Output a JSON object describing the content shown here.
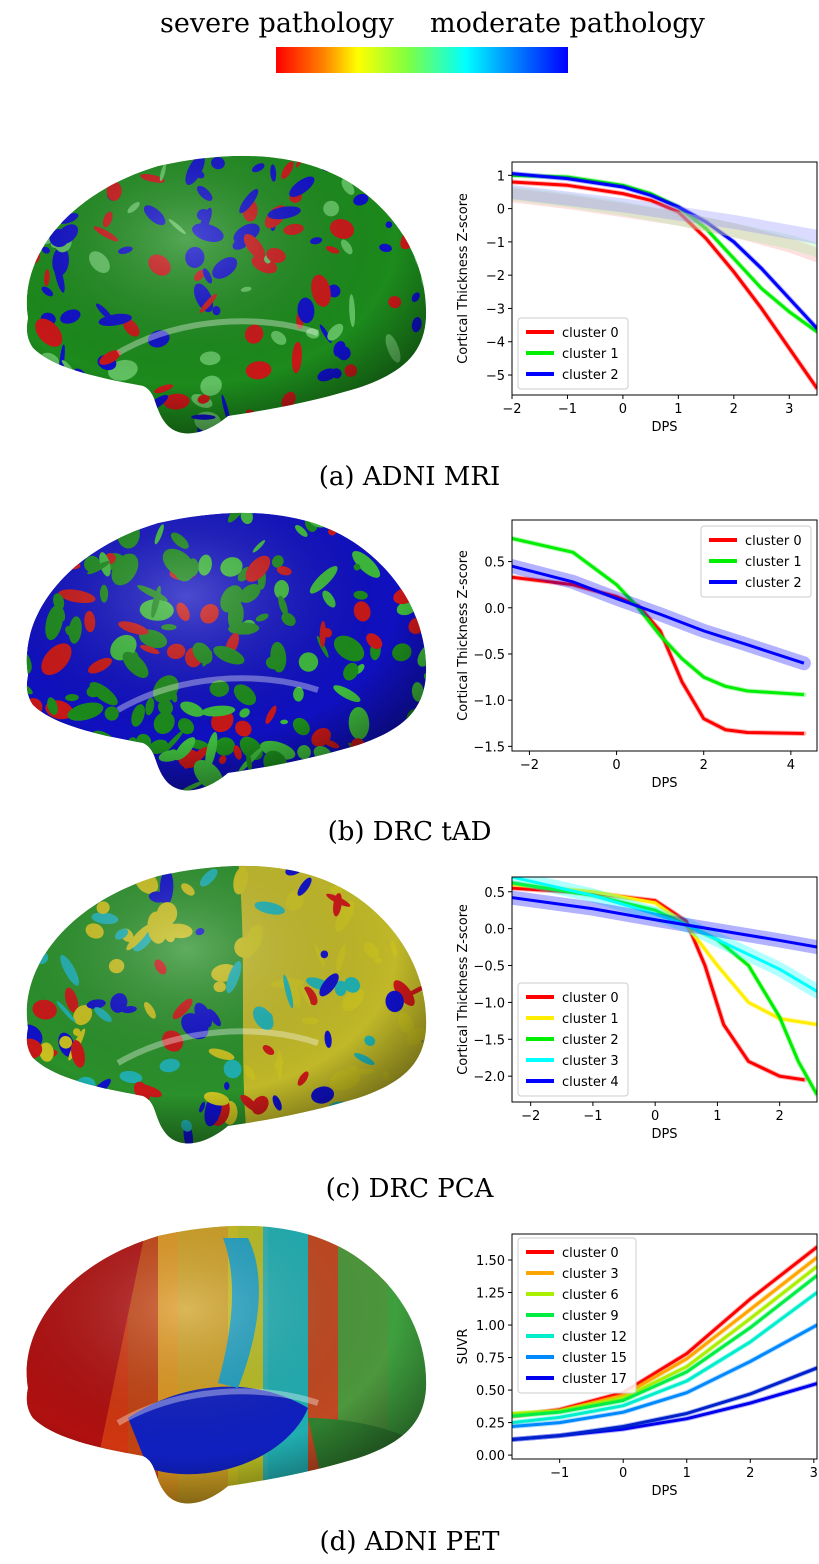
{
  "colorbar": {
    "left_label": "severe pathology",
    "right_label": "moderate pathology"
  },
  "panels": [
    {
      "caption": "(a) ADNI MRI",
      "brain_scheme": "rgb-spots"
    },
    {
      "caption": "(b) DRC tAD",
      "brain_scheme": "rgb-spots-dense"
    },
    {
      "caption": "(c) DRC PCA",
      "brain_scheme": "rgbyc"
    },
    {
      "caption": "(d) ADNI PET",
      "brain_scheme": "smooth-jet"
    }
  ],
  "chart_data": [
    {
      "type": "line",
      "xlabel": "DPS",
      "ylabel": "Cortical Thickness Z-score",
      "xlim": [
        -2,
        3.5
      ],
      "ylim": [
        -5.6,
        1.4
      ],
      "xticks": [
        -2,
        -1,
        0,
        1,
        2,
        3
      ],
      "xtick_labels": [
        "−2",
        "−1",
        "0",
        "1",
        "2",
        "3"
      ],
      "yticks": [
        1,
        0,
        -1,
        -2,
        -3,
        -4,
        -5
      ],
      "ytick_labels": [
        "1",
        "0",
        "−1",
        "−2",
        "−3",
        "−4",
        "−5"
      ],
      "legend": "lower-left",
      "series": [
        {
          "name": "cluster 0",
          "color": "#ff0000",
          "x": [
            -2,
            -1,
            0,
            0.5,
            1,
            1.5,
            2,
            2.5,
            3,
            3.5
          ],
          "y": [
            0.8,
            0.7,
            0.45,
            0.25,
            -0.1,
            -0.9,
            -1.9,
            -3.0,
            -4.2,
            -5.4
          ]
        },
        {
          "name": "cluster 1",
          "color": "#00ee00",
          "x": [
            -2,
            -1,
            0,
            0.5,
            1,
            1.5,
            2,
            2.5,
            3,
            3.5
          ],
          "y": [
            1.0,
            0.95,
            0.7,
            0.45,
            0.05,
            -0.6,
            -1.5,
            -2.4,
            -3.1,
            -3.7
          ]
        },
        {
          "name": "cluster 2",
          "color": "#0000ff",
          "x": [
            -2,
            -1,
            0,
            0.5,
            1,
            1.5,
            2,
            2.5,
            3,
            3.5
          ],
          "y": [
            1.05,
            0.9,
            0.65,
            0.4,
            0.05,
            -0.4,
            -1.0,
            -1.8,
            -2.7,
            -3.6
          ]
        },
        {
          "name": "",
          "color": "#ff9999",
          "x": [
            -2,
            -1,
            0,
            1,
            2,
            3,
            3.5
          ],
          "y": [
            0.4,
            0.2,
            -0.05,
            -0.3,
            -0.65,
            -1.1,
            -1.4
          ],
          "band": true
        },
        {
          "name": "",
          "color": "#99ee99",
          "x": [
            -2,
            -1,
            0,
            1,
            2,
            3,
            3.5
          ],
          "y": [
            0.45,
            0.25,
            0.0,
            -0.3,
            -0.65,
            -1.0,
            -1.25
          ],
          "band": true
        },
        {
          "name": "",
          "color": "#8888ff",
          "x": [
            -2,
            -1,
            0,
            1,
            2,
            3,
            3.5
          ],
          "y": [
            0.5,
            0.3,
            0.1,
            -0.15,
            -0.4,
            -0.7,
            -0.85
          ],
          "band": true
        }
      ]
    },
    {
      "type": "line",
      "xlabel": "DPS",
      "ylabel": "Cortical Thickness Z-score",
      "xlim": [
        -2.4,
        4.6
      ],
      "ylim": [
        -1.55,
        0.95
      ],
      "xticks": [
        -2,
        0,
        2,
        4
      ],
      "xtick_labels": [
        "−2",
        "0",
        "2",
        "4"
      ],
      "yticks": [
        0.5,
        0,
        -0.5,
        -1,
        -1.5
      ],
      "ytick_labels": [
        "0.5",
        "0.0",
        "−0.5",
        "−1.0",
        "−1.5"
      ],
      "legend": "upper-right",
      "series": [
        {
          "name": "cluster 0",
          "color": "#ff0000",
          "x": [
            -2.4,
            -1,
            0,
            0.5,
            1,
            1.5,
            2,
            2.5,
            3,
            4.3
          ],
          "y": [
            0.33,
            0.25,
            0.12,
            0.02,
            -0.25,
            -0.8,
            -1.2,
            -1.32,
            -1.35,
            -1.36
          ]
        },
        {
          "name": "cluster 1",
          "color": "#00ee00",
          "x": [
            -2.4,
            -1,
            0,
            0.5,
            1,
            1.5,
            2,
            2.5,
            3,
            4.3
          ],
          "y": [
            0.75,
            0.6,
            0.25,
            0.0,
            -0.3,
            -0.55,
            -0.75,
            -0.85,
            -0.9,
            -0.94
          ]
        },
        {
          "name": "cluster 2",
          "color": "#0000ff",
          "x": [
            -2.4,
            -1,
            0,
            1,
            2,
            3,
            4.3
          ],
          "y": [
            0.45,
            0.28,
            0.1,
            -0.07,
            -0.25,
            -0.4,
            -0.6
          ],
          "band": true
        }
      ]
    },
    {
      "type": "line",
      "xlabel": "DPS",
      "ylabel": "Cortical Thickness Z-score",
      "xlim": [
        -2.3,
        2.6
      ],
      "ylim": [
        -2.35,
        0.7
      ],
      "xticks": [
        -2,
        -1,
        0,
        1,
        2
      ],
      "xtick_labels": [
        "−2",
        "−1",
        "0",
        "1",
        "2"
      ],
      "yticks": [
        0.5,
        0,
        -0.5,
        -1,
        -1.5,
        -2
      ],
      "ytick_labels": [
        "0.5",
        "0.0",
        "−0.5",
        "−1.0",
        "−1.5",
        "−2.0"
      ],
      "legend": "lower-left",
      "series": [
        {
          "name": "cluster 0",
          "color": "#ff0000",
          "x": [
            -2.3,
            -1,
            0,
            0.5,
            0.8,
            1.1,
            1.5,
            2,
            2.4
          ],
          "y": [
            0.55,
            0.48,
            0.38,
            0.1,
            -0.5,
            -1.3,
            -1.8,
            -2.0,
            -2.05
          ]
        },
        {
          "name": "cluster 1",
          "color": "#ffee00",
          "x": [
            -2.3,
            -1,
            0,
            0.5,
            1,
            1.5,
            2,
            2.6
          ],
          "y": [
            0.6,
            0.5,
            0.35,
            0.05,
            -0.5,
            -1.0,
            -1.22,
            -1.3
          ]
        },
        {
          "name": "cluster 2",
          "color": "#00ee00",
          "x": [
            -2.3,
            -1,
            0,
            0.5,
            1,
            1.5,
            2,
            2.3,
            2.6
          ],
          "y": [
            0.62,
            0.45,
            0.25,
            0.05,
            -0.15,
            -0.5,
            -1.2,
            -1.8,
            -2.25
          ]
        },
        {
          "name": "cluster 3",
          "color": "#00ffff",
          "x": [
            -2.3,
            -1,
            0,
            0.5,
            1,
            1.5,
            2,
            2.6
          ],
          "y": [
            0.7,
            0.45,
            0.2,
            0.05,
            -0.15,
            -0.35,
            -0.55,
            -0.85
          ],
          "band": true
        },
        {
          "name": "cluster 4",
          "color": "#0000ff",
          "x": [
            -2.3,
            -1,
            0,
            1,
            2,
            2.6
          ],
          "y": [
            0.42,
            0.27,
            0.12,
            -0.02,
            -0.16,
            -0.25
          ],
          "band": true
        }
      ]
    },
    {
      "type": "line",
      "xlabel": "DPS",
      "ylabel": "SUVR",
      "xlim": [
        -1.75,
        3.05
      ],
      "ylim": [
        -0.03,
        1.7
      ],
      "xticks": [
        -1,
        0,
        1,
        2,
        3
      ],
      "xtick_labels": [
        "−1",
        "0",
        "1",
        "2",
        "3"
      ],
      "yticks": [
        0,
        0.25,
        0.5,
        0.75,
        1,
        1.25,
        1.5
      ],
      "ytick_labels": [
        "0.00",
        "0.25",
        "0.50",
        "0.75",
        "1.00",
        "1.25",
        "1.50"
      ],
      "legend": "upper-left",
      "series": [
        {
          "name": "cluster 0",
          "color": "#ff0000",
          "x": [
            -1.75,
            -1,
            0,
            1,
            2,
            3.05
          ],
          "y": [
            0.3,
            0.35,
            0.48,
            0.78,
            1.2,
            1.6
          ]
        },
        {
          "name": "cluster 3",
          "color": "#ffa500",
          "x": [
            -1.75,
            -1,
            0,
            1,
            2,
            3.05
          ],
          "y": [
            0.3,
            0.34,
            0.46,
            0.74,
            1.12,
            1.52
          ]
        },
        {
          "name": "cluster 6",
          "color": "#aaee00",
          "x": [
            -1.75,
            -1,
            0,
            1,
            2,
            3.05
          ],
          "y": [
            0.32,
            0.34,
            0.44,
            0.68,
            1.05,
            1.45
          ]
        },
        {
          "name": "cluster 9",
          "color": "#00ee44",
          "x": [
            -1.75,
            -1,
            0,
            1,
            2,
            3.05
          ],
          "y": [
            0.3,
            0.33,
            0.42,
            0.64,
            0.98,
            1.38
          ]
        },
        {
          "name": "cluster 12",
          "color": "#00eecc",
          "x": [
            -1.75,
            -1,
            0,
            1,
            2,
            3.05
          ],
          "y": [
            0.25,
            0.29,
            0.38,
            0.57,
            0.87,
            1.25
          ]
        },
        {
          "name": "cluster 15",
          "color": "#0088ff",
          "x": [
            -1.75,
            -1,
            0,
            1,
            2,
            3.05
          ],
          "y": [
            0.22,
            0.25,
            0.33,
            0.48,
            0.72,
            1.0
          ]
        },
        {
          "name": "cluster 17",
          "color": "#0000ee",
          "x": [
            -1.75,
            -1,
            0,
            1,
            2,
            3.05
          ],
          "y": [
            0.12,
            0.15,
            0.2,
            0.28,
            0.4,
            0.55
          ]
        },
        {
          "name": "",
          "color": "#0022cc",
          "x": [
            -1.75,
            -1,
            0,
            1,
            2,
            3.05
          ],
          "y": [
            0.12,
            0.15,
            0.22,
            0.32,
            0.47,
            0.67
          ]
        }
      ]
    }
  ]
}
